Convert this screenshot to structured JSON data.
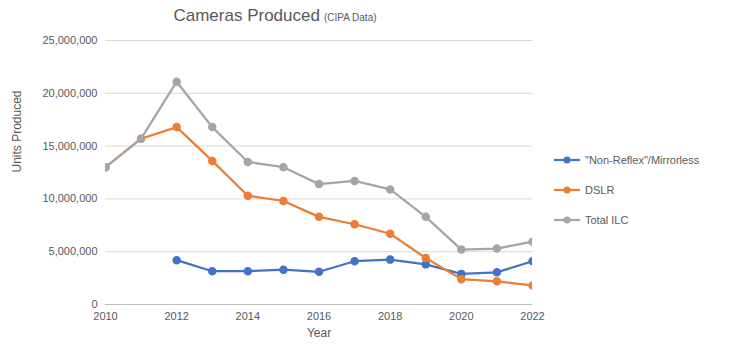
{
  "chart_data": {
    "type": "line",
    "title": "Cameras Produced",
    "subtitle": "(CIPA Data)",
    "x_label": "Year",
    "y_label": "Units Produced",
    "x": [
      2010,
      2011,
      2012,
      2013,
      2014,
      2015,
      2016,
      2017,
      2018,
      2019,
      2020,
      2021,
      2022
    ],
    "series": [
      {
        "name": "\"Non-Reflex\"/Mirrorless",
        "color": "#4472c4",
        "marker": "circle",
        "line_style": "solid",
        "values": [
          null,
          null,
          4200000,
          3150000,
          3150000,
          3300000,
          3100000,
          4100000,
          4250000,
          3800000,
          2900000,
          3050000,
          4100000
        ]
      },
      {
        "name": "DSLR",
        "color": "#ed7d31",
        "marker": "circle",
        "line_style": "solid",
        "values": [
          13000000,
          15700000,
          16800000,
          13600000,
          10300000,
          9800000,
          8300000,
          7600000,
          6700000,
          4400000,
          2400000,
          2200000,
          1800000
        ]
      },
      {
        "name": "Total ILC",
        "color": "#a5a5a5",
        "marker": "circle",
        "line_style": "solid",
        "values": [
          13000000,
          15700000,
          21100000,
          16800000,
          13500000,
          13000000,
          11400000,
          11700000,
          10900000,
          8300000,
          5200000,
          5300000,
          5950000
        ]
      }
    ],
    "xlim": [
      2010,
      2022
    ],
    "xticks": [
      2010,
      2012,
      2014,
      2016,
      2018,
      2020,
      2022
    ],
    "ylim": [
      0,
      25000000
    ],
    "yticks": [
      0,
      {
        "value": 5000000,
        "label": "5,000,000"
      },
      {
        "value": 10000000,
        "label": "10,000,000"
      },
      {
        "value": 15000000,
        "label": "15,000,000"
      },
      {
        "value": 20000000,
        "label": "20,000,000"
      },
      {
        "value": 25000000,
        "label": "25,000,000"
      }
    ],
    "grid": true,
    "legend": "right"
  }
}
